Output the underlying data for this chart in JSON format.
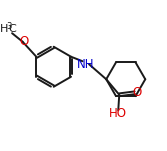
{
  "background_color": "#ffffff",
  "bond_color": "#1a1a1a",
  "bond_width": 1.4,
  "atom_colors": {
    "N": "#0000cc",
    "O": "#dd0000"
  },
  "fig_width": 1.67,
  "fig_height": 1.51,
  "dpi": 100,
  "xlim": [
    -0.5,
    5.8
  ],
  "ylim": [
    -2.6,
    3.0
  ]
}
